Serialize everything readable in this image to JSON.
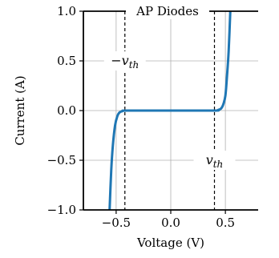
{
  "chart_data": {
    "type": "line",
    "title": "AP Diodes",
    "xlabel": "Voltage (V)",
    "ylabel": "Current (A)",
    "xlim": [
      -0.8,
      0.8
    ],
    "ylim": [
      -1.0,
      1.0
    ],
    "xticks": [
      -0.5,
      0.0,
      0.5
    ],
    "xtick_labels": [
      "−0.5",
      "0.0",
      "0.5"
    ],
    "yticks": [
      -1.0,
      -0.5,
      0.0,
      0.5,
      1.0
    ],
    "ytick_labels": [
      "−1.0",
      "−0.5",
      "0.0",
      "0.5",
      "1.0"
    ],
    "grid": true,
    "series": [
      {
        "color": "#1f77b4",
        "points": [
          [
            -0.56,
            -1.0
          ],
          [
            -0.545,
            -0.6
          ],
          [
            -0.53,
            -0.35
          ],
          [
            -0.51,
            -0.15
          ],
          [
            -0.49,
            -0.06
          ],
          [
            -0.47,
            -0.02
          ],
          [
            -0.44,
            -0.005
          ],
          [
            -0.4,
            0.0
          ],
          [
            0.0,
            0.0
          ],
          [
            0.4,
            0.0
          ],
          [
            0.43,
            0.005
          ],
          [
            0.46,
            0.02
          ],
          [
            0.48,
            0.06
          ],
          [
            0.5,
            0.15
          ],
          [
            0.515,
            0.35
          ],
          [
            0.53,
            0.6
          ],
          [
            0.545,
            1.0
          ]
        ]
      }
    ],
    "vlines": [
      {
        "x": -0.42,
        "style": "dashed",
        "color": "#000000"
      },
      {
        "x": 0.4,
        "style": "dashed",
        "color": "#000000"
      }
    ],
    "annotations": [
      {
        "name": "neg-vth",
        "prefix": "−v",
        "sub": "th",
        "x": -0.42,
        "y": 0.5
      },
      {
        "name": "pos-vth",
        "prefix": "v",
        "sub": "th",
        "x": 0.4,
        "y": -0.5
      }
    ]
  }
}
